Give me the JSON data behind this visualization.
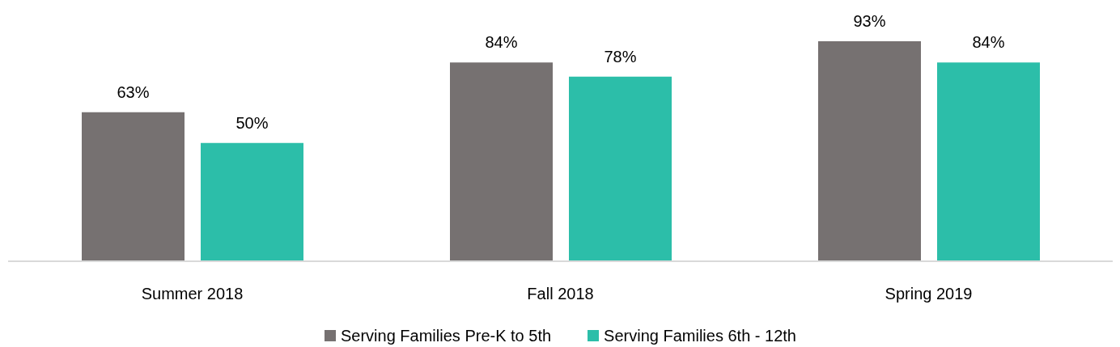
{
  "chart_data": {
    "type": "bar",
    "categories": [
      "Summer 2018",
      "Fall 2018",
      "Spring 2019"
    ],
    "series": [
      {
        "name": "Serving Families Pre-K to 5th",
        "color": "#767171",
        "values": [
          63,
          84,
          93
        ],
        "value_labels": [
          "63%",
          "84%",
          "93%"
        ]
      },
      {
        "name": "Serving Families 6th - 12th",
        "color": "#2cbea9",
        "values": [
          50,
          78,
          84
        ],
        "value_labels": [
          "50%",
          "78%",
          "84%"
        ]
      }
    ],
    "legend": "bottom",
    "tick_labels": "x"
  }
}
